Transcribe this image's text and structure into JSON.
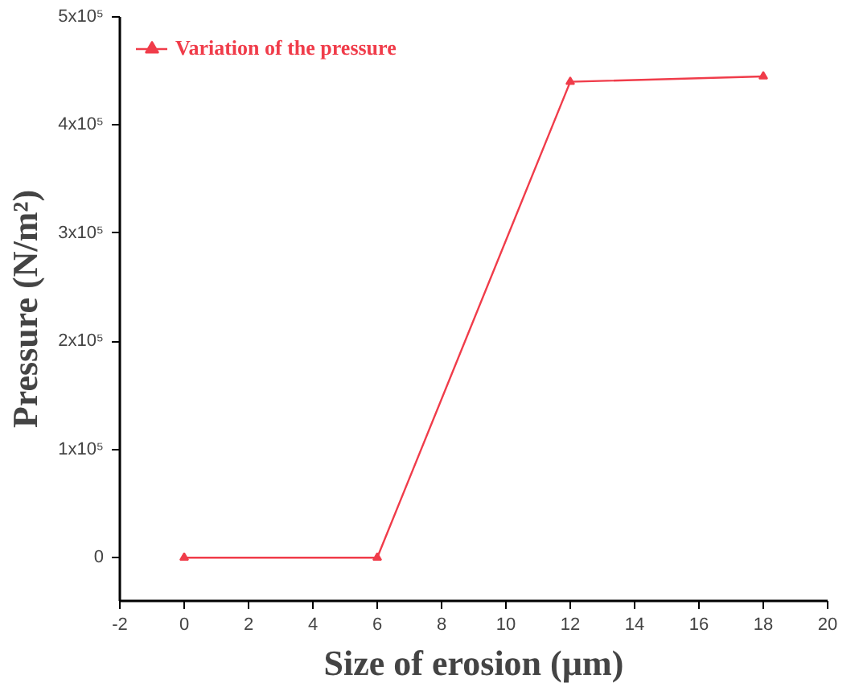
{
  "chart_data": {
    "type": "line",
    "xlabel": "Size of erosion (µm)",
    "ylabel": "Pressure (N/m²)",
    "x": [
      0,
      6,
      12,
      18
    ],
    "series": [
      {
        "name": "Variation of the pressure",
        "color": "#f03c4a",
        "values": [
          0,
          0,
          440000,
          445000
        ]
      }
    ],
    "xlim": [
      -2,
      20
    ],
    "xticks": [
      -2,
      0,
      2,
      4,
      6,
      8,
      10,
      12,
      14,
      16,
      18,
      20
    ],
    "ylim": [
      -40000,
      500000
    ],
    "yticks": [
      0,
      {
        "value": 100000,
        "label": "1x10⁵"
      },
      {
        "value": 200000,
        "label": "2x10⁵"
      },
      {
        "value": 300000,
        "label": "3x10⁵"
      },
      {
        "value": 400000,
        "label": "4x10⁵"
      },
      {
        "value": 500000,
        "label": "5x10⁵"
      }
    ],
    "grid": false,
    "legend": "top left",
    "marker": "triangle",
    "line_style": "solid"
  }
}
